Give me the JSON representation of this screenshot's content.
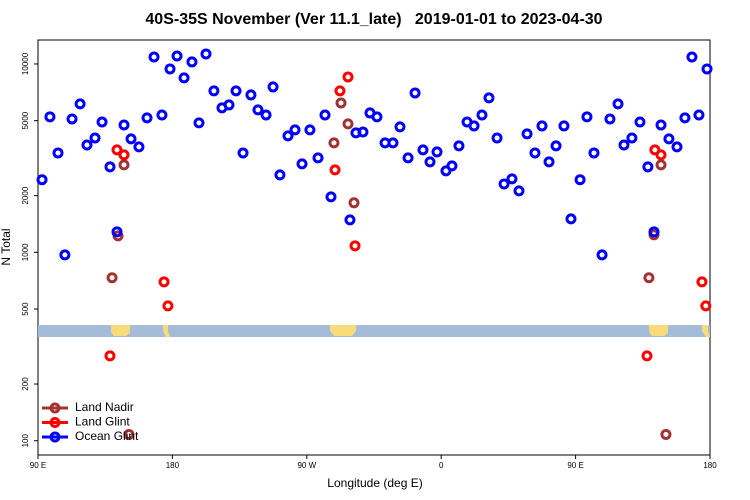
{
  "chart_data": {
    "type": "scatter",
    "title": "40S-35S November (Ver 11.1_late)   2019-01-01 to 2023-04-30",
    "xlabel": "Longitude (deg E)",
    "ylabel": "N Total",
    "xlim": [
      90,
      540
    ],
    "ylim": [
      84,
      13400
    ],
    "ylog": true,
    "legend": "lower left",
    "xticks": [
      {
        "value": 90,
        "label": "90 E"
      },
      180,
      {
        "value": 270,
        "label": "90 W"
      },
      {
        "value": 360,
        "label": "0"
      },
      {
        "value": 450,
        "label": "90 E"
      },
      {
        "value": 540,
        "label": "180"
      }
    ],
    "yticks": [
      100,
      200,
      500,
      1000,
      2000,
      5000,
      10000
    ],
    "series": [
      {
        "name": "Land Nadir",
        "color": "#a33232",
        "x": [
          139.6,
          143.6,
          147.6,
          150.9,
          288.2,
          292.9,
          297.6,
          301.6,
          499.1,
          502.5,
          507.2,
          510.5
        ],
        "values": [
          733,
          1223,
          2911,
          108,
          3810,
          6209,
          4808,
          1832,
          733,
          1239,
          2911,
          108
        ]
      },
      {
        "name": "Land Glint",
        "color": "#ff0000",
        "x": [
          138.2,
          142.9,
          147.6,
          174.4,
          177,
          288.9,
          292.2,
          297.6,
          302.3,
          497.8,
          503.1,
          507.2,
          534.6,
          537.2
        ],
        "values": [
          282,
          3500,
          3290,
          697,
          520,
          2741,
          7194,
          8531,
          1083,
          282,
          3500,
          3290,
          697,
          520
        ]
      },
      {
        "name": "Ocean Glint",
        "color": "#0000ff",
        "x": [
          92.7,
          98,
          103.4,
          108,
          112.8,
          118.2,
          122.8,
          128.2,
          132.9,
          138.2,
          142.9,
          147.6,
          152.3,
          157.6,
          163,
          167.7,
          173,
          178.4,
          183.1,
          187.8,
          193.1,
          197.8,
          202.5,
          207.8,
          213.2,
          217.9,
          222.6,
          227.3,
          232.6,
          237.3,
          242.7,
          247.4,
          252,
          257.4,
          262.1,
          266.8,
          272.1,
          277.5,
          282.2,
          286.2,
          298.9,
          302.9,
          307.6,
          312.3,
          317,
          322.4,
          327.7,
          332.4,
          337.8,
          342.5,
          347.8,
          352.5,
          357.2,
          363.2,
          367.2,
          371.9,
          377.3,
          382,
          387.3,
          392,
          397.4,
          402.1,
          407.4,
          412.1,
          417.5,
          422.8,
          427.5,
          432.2,
          436.9,
          442.2,
          446.9,
          453,
          457.6,
          462.3,
          467.7,
          473,
          478.4,
          482.4,
          487.7,
          493.1,
          498.4,
          502.5,
          507.2,
          512.5,
          517.9,
          523.2,
          527.9,
          532.6,
          538
        ],
        "values": [
          2430,
          5240,
          3370,
          970,
          5105,
          6137,
          3715,
          4047,
          4920,
          2844,
          1285,
          4743,
          4000,
          3631,
          5176,
          10890,
          5358,
          9408,
          11020,
          8433,
          10250,
          4864,
          11300,
          7194,
          5848,
          6060,
          7194,
          3370,
          6847,
          5702,
          5358,
          7551,
          2576,
          4150,
          4467,
          2948,
          4467,
          3172,
          5358,
          1970,
          1487,
          4305,
          4355,
          5495,
          5236,
          3810,
          3810,
          4634,
          3172,
          7016,
          3500,
          3020,
          3412,
          2706,
          2877,
          3672,
          4920,
          4688,
          5358,
          6607,
          4047,
          2307,
          2455,
          2120,
          4256,
          3370,
          4688,
          3020,
          3672,
          4688,
          1506,
          2430,
          5240,
          3370,
          970,
          5105,
          6137,
          3715,
          4047,
          4920,
          2844,
          1285,
          4743,
          4000,
          3631,
          5176,
          10890,
          5358,
          9408
        ]
      }
    ]
  }
}
